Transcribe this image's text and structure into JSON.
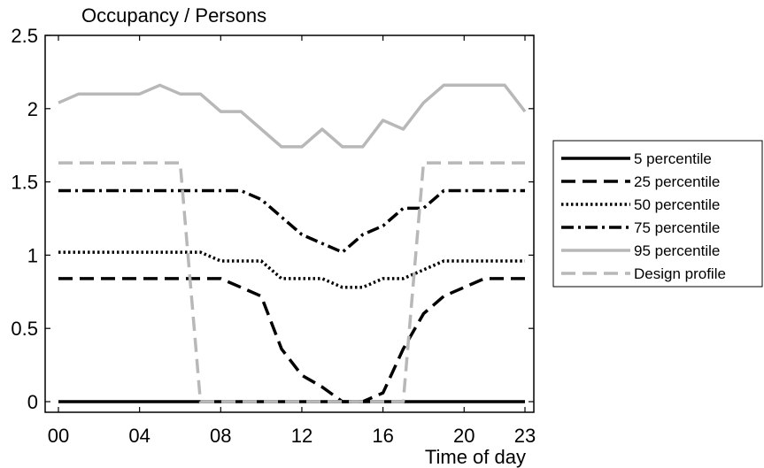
{
  "chart_data": {
    "type": "line",
    "title": "Occupancy / Persons",
    "xlabel": "Time of day",
    "ylabel": "",
    "xlim": [
      0,
      23
    ],
    "ylim": [
      0,
      2.5
    ],
    "x_ticks": [
      {
        "value": 0,
        "label": "00"
      },
      {
        "value": 4,
        "label": "04"
      },
      {
        "value": 8,
        "label": "08"
      },
      {
        "value": 12,
        "label": "12"
      },
      {
        "value": 16,
        "label": "16"
      },
      {
        "value": 20,
        "label": "20"
      },
      {
        "value": 23,
        "label": "23"
      }
    ],
    "y_ticks": [
      {
        "value": 0,
        "label": "0"
      },
      {
        "value": 0.5,
        "label": "0.5"
      },
      {
        "value": 1,
        "label": "1"
      },
      {
        "value": 1.5,
        "label": "1.5"
      },
      {
        "value": 2,
        "label": "2"
      },
      {
        "value": 2.5,
        "label": "2.5"
      }
    ],
    "grid": false,
    "legend_position": "outside-right",
    "x": [
      0,
      1,
      2,
      3,
      4,
      5,
      6,
      7,
      8,
      9,
      10,
      11,
      12,
      13,
      14,
      15,
      16,
      17,
      18,
      19,
      20,
      21,
      22,
      23
    ],
    "series": [
      {
        "name": "5 percentile",
        "color": "#000000",
        "dash": "solid",
        "values": [
          0,
          0,
          0,
          0,
          0,
          0,
          0,
          0,
          0,
          0,
          0,
          0,
          0,
          0,
          0,
          0,
          0,
          0,
          0,
          0,
          0,
          0,
          0,
          0
        ]
      },
      {
        "name": "25 percentile",
        "color": "#000000",
        "dash": "dashed",
        "values": [
          0.84,
          0.84,
          0.84,
          0.84,
          0.84,
          0.84,
          0.84,
          0.84,
          0.84,
          0.78,
          0.72,
          0.36,
          0.18,
          0.1,
          0,
          0,
          0.06,
          0.36,
          0.6,
          0.72,
          0.78,
          0.84,
          0.84,
          0.84
        ]
      },
      {
        "name": "50 percentile",
        "color": "#000000",
        "dash": "dotted",
        "values": [
          1.02,
          1.02,
          1.02,
          1.02,
          1.02,
          1.02,
          1.02,
          1.02,
          0.96,
          0.96,
          0.96,
          0.84,
          0.84,
          0.84,
          0.78,
          0.78,
          0.84,
          0.84,
          0.9,
          0.96,
          0.96,
          0.96,
          0.96,
          0.96
        ]
      },
      {
        "name": "75 percentile",
        "color": "#000000",
        "dash": "dashdot",
        "values": [
          1.44,
          1.44,
          1.44,
          1.44,
          1.44,
          1.44,
          1.44,
          1.44,
          1.44,
          1.44,
          1.38,
          1.26,
          1.14,
          1.08,
          1.02,
          1.14,
          1.2,
          1.32,
          1.32,
          1.44,
          1.44,
          1.44,
          1.44,
          1.44
        ]
      },
      {
        "name": "95 percentile",
        "color": "#b8b8b8",
        "dash": "solid",
        "values": [
          2.04,
          2.1,
          2.1,
          2.1,
          2.1,
          2.16,
          2.1,
          2.1,
          1.98,
          1.98,
          1.86,
          1.74,
          1.74,
          1.86,
          1.74,
          1.74,
          1.92,
          1.86,
          2.04,
          2.16,
          2.16,
          2.16,
          2.16,
          1.98
        ]
      },
      {
        "name": "Design profile",
        "color": "#b8b8b8",
        "dash": "dashed",
        "points": [
          [
            0,
            1.63
          ],
          [
            6,
            1.63
          ],
          [
            7,
            0
          ],
          [
            17,
            0
          ],
          [
            18,
            1.63
          ],
          [
            23,
            1.63
          ]
        ]
      }
    ]
  }
}
